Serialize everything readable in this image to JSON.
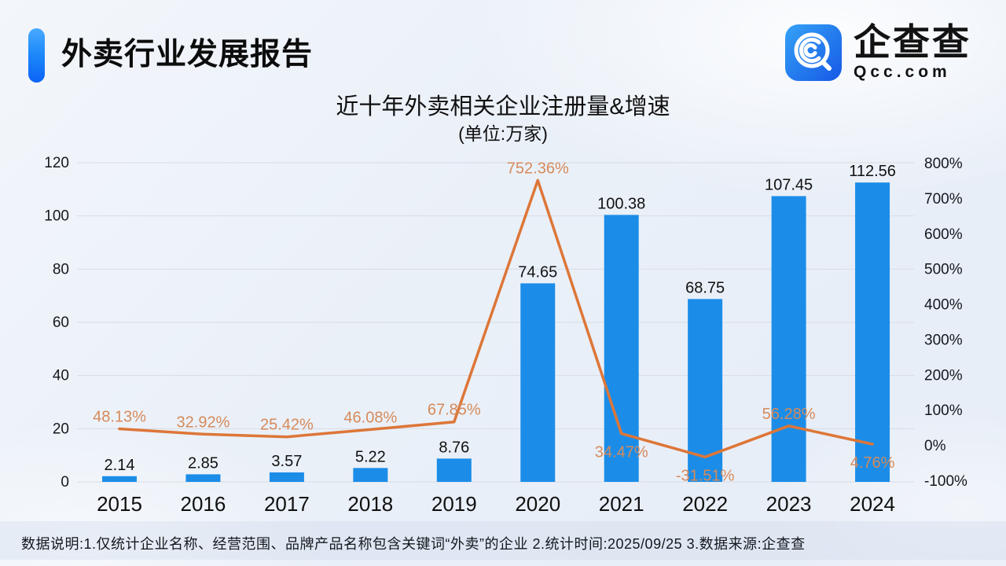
{
  "page": {
    "report_title": "外卖行业发展报告",
    "footer_note": "数据说明:1.仅统计企业名称、经营范围、品牌产品名称包含关键词“外卖”的企业  2.统计时间:2025/09/25  3.数据来源:企查查"
  },
  "logo": {
    "name": "企查查",
    "domain": "Qcc.com",
    "icon_color_top": "#2f9df5",
    "icon_color_bottom": "#1659e6"
  },
  "chart_data": {
    "type": "bar",
    "title": "近十年外卖相关企业注册量&增速",
    "subtitle": "(单位:万家)",
    "categories": [
      "2015",
      "2016",
      "2017",
      "2018",
      "2019",
      "2020",
      "2021",
      "2022",
      "2023",
      "2024"
    ],
    "series": [
      {
        "name": "注册量",
        "type": "bar",
        "axis": "left",
        "unit": "万家",
        "color": "#1b8de8",
        "label_color": "#111111",
        "values": [
          2.14,
          2.85,
          3.57,
          5.22,
          8.76,
          74.65,
          100.38,
          68.75,
          107.45,
          112.56
        ]
      },
      {
        "name": "增速",
        "type": "line",
        "axis": "right",
        "unit": "%",
        "color": "#dd7638",
        "label_color": "#d68a5a",
        "values": [
          48.13,
          32.92,
          25.42,
          46.08,
          67.85,
          752.36,
          34.47,
          -31.51,
          56.28,
          4.76
        ],
        "value_suffix": "%",
        "label_positions": [
          "above",
          "above",
          "above",
          "above",
          "above",
          "above",
          "below",
          "below",
          "above",
          "below"
        ]
      }
    ],
    "left_axis": {
      "min": 0,
      "max": 120,
      "step": 20
    },
    "right_axis": {
      "min": -100,
      "max": 800,
      "step": 100,
      "suffix": "%"
    },
    "grid": "horizontal",
    "gridline_color": "#d7dce5",
    "axis_label_color": "#15181d",
    "legend": "none"
  }
}
